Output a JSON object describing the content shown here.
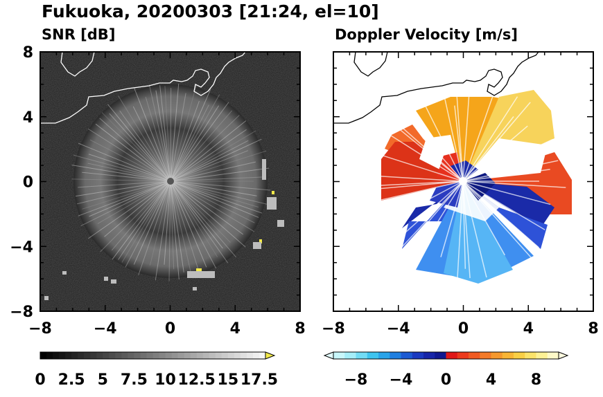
{
  "figure": {
    "title": "Fukuoka, 20200303 [21:24, el=10]"
  },
  "chart_data": [
    {
      "type": "heatmap",
      "title": "SNR [dB]",
      "x_ticks": [
        "−8",
        "−4",
        "0",
        "4",
        "8"
      ],
      "y_ticks": [
        "−8",
        "−4",
        "0",
        "4",
        "8"
      ],
      "xlim": [
        -8,
        8
      ],
      "ylim": [
        -8,
        8
      ],
      "colorbar": {
        "colormap": "grayscale (black to white, yellow over-range)",
        "labels": [
          "0",
          "2.5",
          "5",
          "7.5",
          "10",
          "12.5",
          "15",
          "17.5"
        ],
        "range": [
          0,
          18
        ],
        "extend": "max",
        "over_color": "#f2e94a"
      },
      "description_values": {
        "center": [
          0,
          0
        ]
      }
    },
    {
      "type": "heatmap",
      "title": "Doppler Velocity [m/s]",
      "x_ticks": [
        "−8",
        "−4",
        "0",
        "4",
        "8"
      ],
      "y_ticks": [],
      "xlim": [
        -8,
        8
      ],
      "ylim": [
        -8,
        8
      ],
      "colorbar": {
        "colormap": "diverging (cyan-blue negative, red-yellow positive)",
        "labels": [
          "−8",
          "−4",
          "0",
          "4",
          "8"
        ],
        "range": [
          -10,
          10
        ],
        "extend": "both"
      }
    }
  ]
}
